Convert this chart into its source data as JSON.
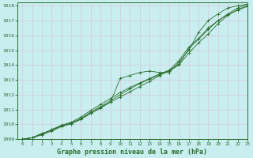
{
  "title": "Graphe pression niveau de la mer (hPa)",
  "bg_color": "#c8eef0",
  "grid_color": "#d8c8d8",
  "line_color": "#2d6e2d",
  "xlim": [
    -0.5,
    23
  ],
  "ylim": [
    1009,
    1018.2
  ],
  "xticks": [
    0,
    1,
    2,
    3,
    4,
    5,
    6,
    7,
    8,
    9,
    10,
    11,
    12,
    13,
    14,
    15,
    16,
    17,
    18,
    19,
    20,
    21,
    22,
    23
  ],
  "yticks": [
    1009,
    1010,
    1011,
    1012,
    1013,
    1014,
    1015,
    1016,
    1017,
    1018
  ],
  "series": [
    [
      1009.0,
      1009.1,
      1009.4,
      1009.6,
      1009.9,
      1010.05,
      1010.35,
      1010.75,
      1011.1,
      1011.5,
      1013.1,
      1013.3,
      1013.5,
      1013.6,
      1013.5,
      1013.5,
      1014.2,
      1015.0,
      1016.2,
      1017.0,
      1017.45,
      1017.85,
      1018.0,
      1018.1
    ],
    [
      1009.0,
      1009.1,
      1009.35,
      1009.65,
      1009.9,
      1010.1,
      1010.4,
      1010.85,
      1011.2,
      1011.6,
      1012.0,
      1012.4,
      1012.75,
      1013.05,
      1013.35,
      1013.65,
      1014.3,
      1015.2,
      1015.8,
      1016.5,
      1017.0,
      1017.4,
      1017.7,
      1017.95
    ],
    [
      1009.0,
      1009.1,
      1009.35,
      1009.65,
      1009.95,
      1010.15,
      1010.5,
      1010.95,
      1011.35,
      1011.75,
      1012.15,
      1012.5,
      1012.8,
      1013.1,
      1013.4,
      1013.65,
      1014.05,
      1015.1,
      1015.75,
      1016.4,
      1017.0,
      1017.45,
      1017.85,
      1018.1
    ],
    [
      1009.0,
      1009.1,
      1009.3,
      1009.55,
      1009.85,
      1010.05,
      1010.35,
      1010.75,
      1011.15,
      1011.5,
      1011.85,
      1012.2,
      1012.55,
      1012.9,
      1013.3,
      1013.6,
      1014.0,
      1014.8,
      1015.5,
      1016.1,
      1016.8,
      1017.35,
      1017.75,
      1018.0
    ]
  ]
}
